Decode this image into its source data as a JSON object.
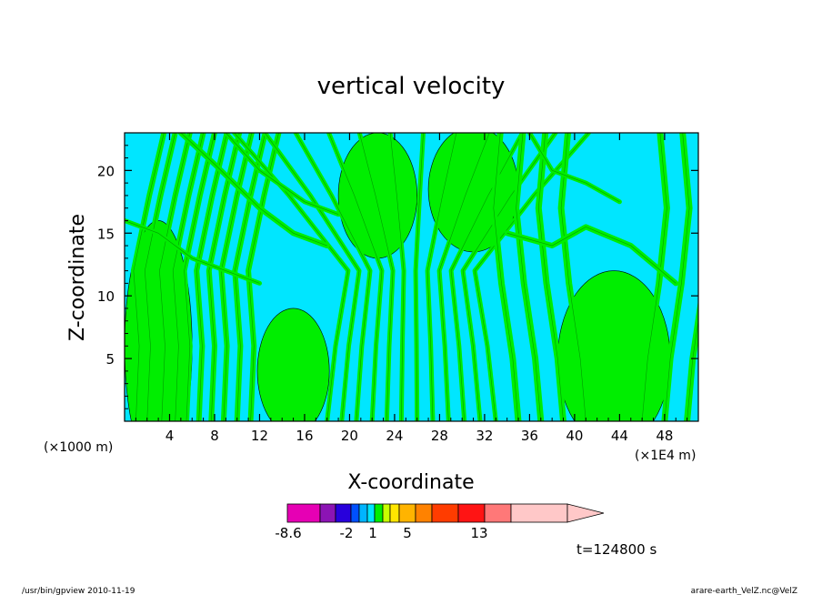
{
  "chart_data": {
    "type": "heatmap",
    "title": "vertical velocity",
    "xlabel": "X-coordinate",
    "ylabel": "Z-coordinate",
    "x_unit_left": "(×1000 m)",
    "x_unit_right": "(×1E4 m)",
    "xlim": [
      0,
      51
    ],
    "ylim": [
      0,
      23
    ],
    "x_ticks": [
      4,
      8,
      12,
      16,
      20,
      24,
      28,
      32,
      36,
      40,
      44,
      48
    ],
    "x_tick_labels": [
      "4",
      "8",
      "12",
      "16",
      "20",
      "24",
      "28",
      "32",
      "36",
      "40",
      "44",
      "48"
    ],
    "y_ticks": [
      5,
      10,
      15,
      20
    ],
    "y_tick_labels": [
      "5",
      "10",
      "15",
      "20"
    ],
    "fields": [
      {
        "name": "negative",
        "color": "#00e6ff"
      },
      {
        "name": "positive",
        "color": "#00ee00"
      }
    ],
    "colorbar": {
      "colors": [
        "#e600b4",
        "#8c14b4",
        "#2800dc",
        "#0050ff",
        "#00b4ff",
        "#00e6ff",
        "#00ee00",
        "#c8ff00",
        "#ffe600",
        "#ffb400",
        "#ff8200",
        "#ff3c00",
        "#ff1414",
        "#ff7878",
        "#ffc8c8"
      ],
      "labels": [
        "-8.6",
        "-2",
        "1",
        "5",
        "13"
      ],
      "label_index": [
        0,
        3,
        6,
        8,
        13
      ]
    },
    "time_label": "t=124800 s"
  },
  "footer": {
    "left": "/usr/bin/gpview   2010-11-19",
    "right": "arare-earth_VelZ.nc@VelZ"
  }
}
